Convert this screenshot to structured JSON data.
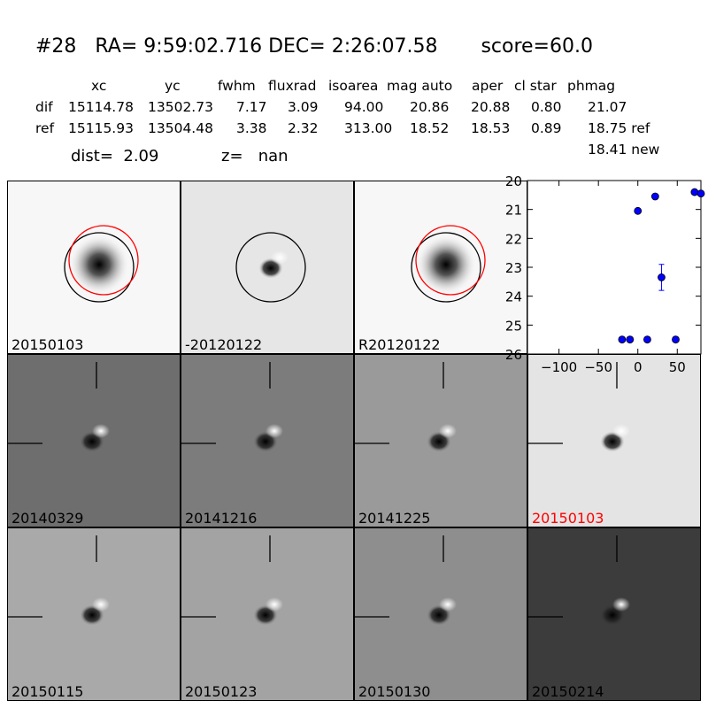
{
  "header": {
    "title": "#28   RA= 9:59:02.716 DEC= 2:26:07.58       score=60.0",
    "columns": [
      "xc",
      "yc",
      "fwhm",
      "fluxrad",
      "isoarea",
      "mag auto",
      "aper",
      "cl star",
      "phmag"
    ],
    "rows": [
      {
        "label": "dif",
        "values": [
          "15114.78",
          "13502.73",
          "7.17",
          "3.09",
          "94.00",
          "20.86",
          "20.88",
          "0.80",
          "21.07"
        ]
      },
      {
        "label": "ref",
        "values": [
          "15115.93",
          "13504.48",
          "3.38",
          "2.32",
          "313.00",
          "18.52",
          "18.53",
          "0.89",
          "18.75 ref"
        ]
      }
    ],
    "extra_phmag": "18.41 new",
    "dist_text": "dist=  2.09",
    "z_text": "z=   nan"
  },
  "panels": [
    {
      "label": "20150103",
      "bg": "#f7f7f7",
      "kind": "ref",
      "circles": true
    },
    {
      "label": "-20120122",
      "bg": "#e6e6e6",
      "kind": "dipole",
      "circles": "black"
    },
    {
      "label": "R20120122",
      "bg": "#f7f7f7",
      "kind": "ref",
      "circles": true
    },
    {
      "label": "20140329",
      "bg": "#6e6e6e",
      "kind": "dipole",
      "cross": true
    },
    {
      "label": "20141216",
      "bg": "#7c7c7c",
      "kind": "dipole",
      "cross": true
    },
    {
      "label": "20141225",
      "bg": "#9a9a9a",
      "kind": "dipole",
      "cross": true
    },
    {
      "label": "20150103",
      "bg": "#e4e4e4",
      "kind": "dipole",
      "cross": true,
      "label_color": "#ff0000"
    },
    {
      "label": "20150115",
      "bg": "#a9a9a9",
      "kind": "dipole",
      "cross": true
    },
    {
      "label": "20150123",
      "bg": "#a3a3a3",
      "kind": "dipole",
      "cross": true
    },
    {
      "label": "20150130",
      "bg": "#8e8e8e",
      "kind": "dipole",
      "cross": true
    },
    {
      "label": "20150214",
      "bg": "#3c3c3c",
      "kind": "dipole",
      "cross": true
    }
  ],
  "chart_data": {
    "type": "scatter",
    "xlim": [
      -140,
      80
    ],
    "ylim": [
      26,
      20
    ],
    "x_ticks": [
      -100,
      -50,
      0,
      50
    ],
    "y_ticks": [
      20,
      21,
      22,
      23,
      24,
      25,
      26
    ],
    "points": [
      {
        "x": -20,
        "y": 25.5
      },
      {
        "x": -10,
        "y": 25.5
      },
      {
        "x": 0,
        "y": 21.05
      },
      {
        "x": 12,
        "y": 25.5
      },
      {
        "x": 22,
        "y": 20.55
      },
      {
        "x": 30,
        "y": 23.35,
        "err": 0.45
      },
      {
        "x": 48,
        "y": 25.5
      },
      {
        "x": 72,
        "y": 20.4
      },
      {
        "x": 80,
        "y": 20.45
      }
    ],
    "point_color": "#0000ff"
  }
}
